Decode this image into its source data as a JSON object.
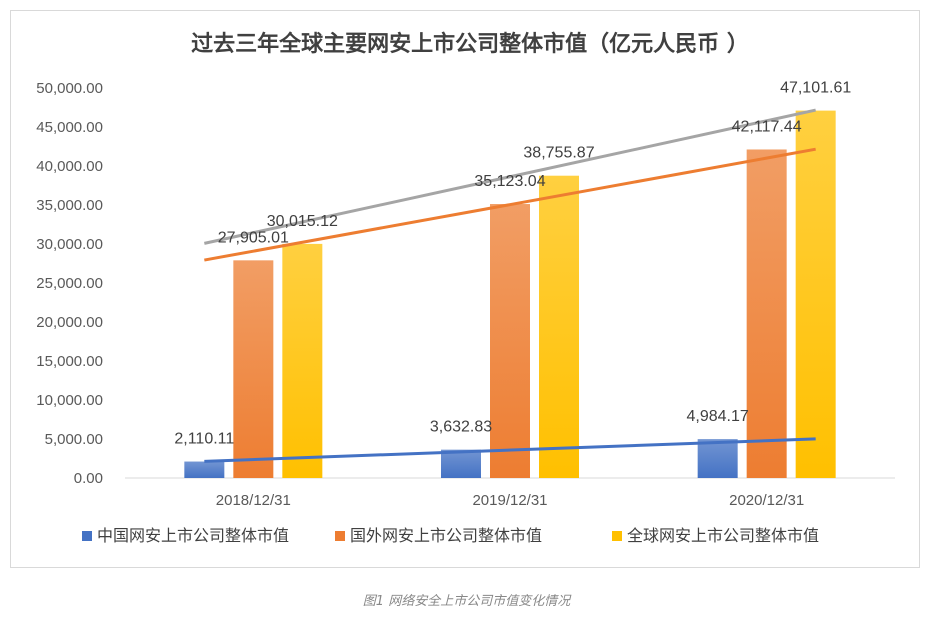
{
  "chart_data": {
    "type": "bar",
    "title": "过去三年全球主要网安上市公司整体市值（亿元人民币 ）",
    "categories": [
      "2018/12/31",
      "2019/12/31",
      "2020/12/31"
    ],
    "series": [
      {
        "name": "中国网安上市公司整体市值",
        "values": [
          2110.11,
          3632.83,
          4984.17
        ],
        "labels": [
          "2,110.11",
          "3,632.83",
          "4,984.17"
        ],
        "color": "#4472c4"
      },
      {
        "name": "国外网安上市公司整体市值",
        "values": [
          27905.01,
          35123.04,
          42117.44
        ],
        "labels": [
          "27,905.01",
          "35,123.04",
          "42,117.44"
        ],
        "color": "#ed7d31"
      },
      {
        "name": "全球网安上市公司整体市值",
        "values": [
          30015.12,
          38755.87,
          47101.61
        ],
        "labels": [
          "30,015.12",
          "38,755.87",
          "47,101.61"
        ],
        "color": "#ffc000"
      }
    ],
    "trendlines": [
      {
        "series": "中国网安上市公司整体市值",
        "color": "#4472c4"
      },
      {
        "series": "国外网安上市公司整体市值",
        "color": "#ed7d31"
      },
      {
        "series": "全球网安上市公司整体市值",
        "color": "#a5a5a5"
      }
    ],
    "ylim": [
      0,
      50000
    ],
    "yticks": [
      "0.00",
      "5,000.00",
      "10,000.00",
      "15,000.00",
      "20,000.00",
      "25,000.00",
      "30,000.00",
      "35,000.00",
      "40,000.00",
      "45,000.00",
      "50,000.00"
    ],
    "ytick_values": [
      0,
      5000,
      10000,
      15000,
      20000,
      25000,
      30000,
      35000,
      40000,
      45000,
      50000
    ],
    "grid": false,
    "legend_position": "bottom"
  },
  "caption": "图1 网络安全上市公司市值变化情况"
}
